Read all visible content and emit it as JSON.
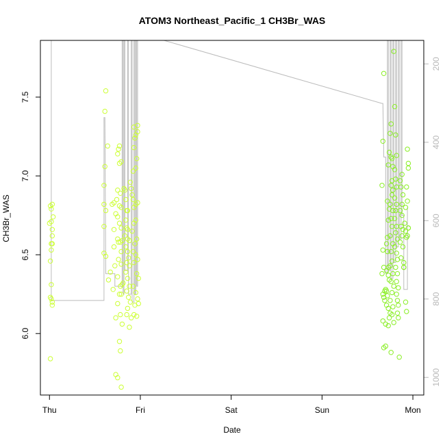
{
  "chart_data": {
    "type": "scatter",
    "title": "ATOM3 Northeast_Pacific_1 CH3Br_WAS",
    "xlabel": "Date",
    "ylabel": "CH3Br_WAS",
    "x_unit": "days",
    "x_ticks": [
      {
        "label": "Thu",
        "value": 0
      },
      {
        "label": "Fri",
        "value": 1
      },
      {
        "label": "Sat",
        "value": 2
      },
      {
        "label": "Sun",
        "value": 3
      },
      {
        "label": "Mon",
        "value": 4
      }
    ],
    "xlim": [
      -0.1,
      4.12
    ],
    "ylim": [
      5.61,
      7.86
    ],
    "y_ticks": [
      6.0,
      6.5,
      7.0,
      7.5
    ],
    "y_tick_labels": [
      "6.0",
      "6.5",
      "7.0",
      "7.5"
    ],
    "y2_ticks": [
      200,
      400,
      600,
      800,
      1000
    ],
    "y2_tick_labels": [
      "200",
      "400",
      "600",
      "800",
      "1000"
    ],
    "y2lim": [
      1045,
      140
    ],
    "y2_reversed": true,
    "point_color_early": "#ccff33",
    "point_color_late": "#88ee22",
    "line_color": "#bbbbbb",
    "series": [
      {
        "marker": "open-circle",
        "points": [
          [
            0.02,
            6.79
          ],
          [
            0.01,
            6.81
          ],
          [
            0.03,
            6.82
          ],
          [
            0.0,
            6.7
          ],
          [
            0.02,
            6.71
          ],
          [
            0.03,
            6.66
          ],
          [
            0.04,
            6.74
          ],
          [
            0.03,
            6.62
          ],
          [
            0.02,
            6.57
          ],
          [
            0.03,
            6.57
          ],
          [
            0.02,
            6.53
          ],
          [
            0.01,
            6.46
          ],
          [
            0.02,
            6.31
          ],
          [
            0.01,
            6.23
          ],
          [
            0.02,
            6.22
          ],
          [
            0.03,
            6.2
          ],
          [
            0.03,
            6.18
          ],
          [
            0.01,
            5.84
          ],
          [
            0.62,
            7.54
          ],
          [
            0.61,
            7.41
          ],
          [
            0.64,
            7.19
          ],
          [
            0.61,
            7.06
          ],
          [
            0.6,
            6.94
          ],
          [
            0.6,
            6.82
          ],
          [
            0.62,
            6.78
          ],
          [
            0.71,
            6.83
          ],
          [
            0.69,
            6.82
          ],
          [
            0.6,
            6.68
          ],
          [
            0.6,
            6.51
          ],
          [
            0.62,
            6.49
          ],
          [
            0.65,
            6.34
          ],
          [
            0.67,
            6.39
          ],
          [
            0.7,
            6.28
          ],
          [
            0.71,
            6.55
          ],
          [
            0.71,
            6.66
          ],
          [
            0.73,
            6.76
          ],
          [
            0.74,
            6.85
          ],
          [
            0.75,
            6.91
          ],
          [
            0.76,
            7.17
          ],
          [
            0.77,
            7.19
          ],
          [
            0.77,
            7.08
          ],
          [
            0.79,
            7.09
          ],
          [
            0.75,
            7.14
          ],
          [
            0.78,
            6.89
          ],
          [
            0.77,
            6.81
          ],
          [
            0.79,
            6.8
          ],
          [
            0.75,
            6.74
          ],
          [
            0.77,
            6.7
          ],
          [
            0.79,
            6.67
          ],
          [
            0.75,
            6.6
          ],
          [
            0.76,
            6.58
          ],
          [
            0.78,
            6.58
          ],
          [
            0.8,
            6.59
          ],
          [
            0.79,
            6.52
          ],
          [
            0.76,
            6.47
          ],
          [
            0.79,
            6.44
          ],
          [
            0.75,
            6.36
          ],
          [
            0.78,
            6.3
          ],
          [
            0.8,
            6.31
          ],
          [
            0.81,
            6.32
          ],
          [
            0.79,
            6.25
          ],
          [
            0.77,
            6.25
          ],
          [
            0.75,
            6.19
          ],
          [
            0.73,
            6.1
          ],
          [
            0.78,
            6.12
          ],
          [
            0.8,
            6.06
          ],
          [
            0.77,
            5.95
          ],
          [
            0.78,
            5.89
          ],
          [
            0.73,
            5.74
          ],
          [
            0.75,
            5.72
          ],
          [
            0.79,
            5.66
          ],
          [
            0.72,
            6.43
          ],
          [
            0.82,
            6.92
          ],
          [
            0.83,
            6.91
          ],
          [
            0.84,
            6.85
          ],
          [
            0.85,
            6.78
          ],
          [
            0.86,
            6.78
          ],
          [
            0.84,
            6.72
          ],
          [
            0.85,
            6.67
          ],
          [
            0.86,
            6.66
          ],
          [
            0.83,
            6.62
          ],
          [
            0.86,
            6.6
          ],
          [
            0.88,
            6.59
          ],
          [
            0.84,
            6.55
          ],
          [
            0.86,
            6.52
          ],
          [
            0.87,
            6.48
          ],
          [
            0.85,
            6.45
          ],
          [
            0.88,
            6.43
          ],
          [
            0.84,
            6.39
          ],
          [
            0.86,
            6.35
          ],
          [
            0.88,
            6.3
          ],
          [
            0.85,
            6.27
          ],
          [
            0.87,
            6.23
          ],
          [
            0.89,
            6.2
          ],
          [
            0.86,
            6.16
          ],
          [
            0.85,
            6.12
          ],
          [
            0.9,
            6.1
          ],
          [
            0.88,
            6.04
          ],
          [
            0.89,
            6.96
          ],
          [
            0.9,
            6.92
          ],
          [
            0.91,
            6.88
          ],
          [
            0.92,
            7.03
          ],
          [
            0.93,
            7.31
          ],
          [
            0.94,
            7.24
          ],
          [
            0.95,
            7.26
          ],
          [
            0.93,
            7.18
          ],
          [
            0.96,
            7.11
          ],
          [
            0.95,
            7.05
          ],
          [
            0.97,
            7.28
          ],
          [
            0.92,
            6.85
          ],
          [
            0.93,
            6.8
          ],
          [
            0.95,
            6.82
          ],
          [
            0.97,
            6.83
          ],
          [
            0.91,
            6.65
          ],
          [
            0.93,
            6.7
          ],
          [
            0.95,
            6.72
          ],
          [
            0.96,
            6.6
          ],
          [
            0.94,
            6.57
          ],
          [
            0.92,
            6.52
          ],
          [
            0.95,
            6.5
          ],
          [
            0.97,
            6.47
          ],
          [
            0.93,
            6.45
          ],
          [
            0.96,
            6.38
          ],
          [
            0.98,
            6.35
          ],
          [
            0.92,
            6.3
          ],
          [
            0.95,
            6.26
          ],
          [
            0.97,
            6.22
          ],
          [
            0.94,
            6.18
          ],
          [
            0.93,
            6.12
          ],
          [
            0.96,
            6.11
          ],
          [
            0.98,
            6.19
          ],
          [
            0.97,
            7.32
          ]
        ]
      },
      {
        "marker": "open-circle",
        "points": [
          [
            3.68,
            7.65
          ],
          [
            3.67,
            7.22
          ],
          [
            3.66,
            6.94
          ],
          [
            3.67,
            6.53
          ],
          [
            3.68,
            6.42
          ],
          [
            3.66,
            6.38
          ],
          [
            3.67,
            6.25
          ],
          [
            3.68,
            6.23
          ],
          [
            3.67,
            6.08
          ],
          [
            3.69,
            6.27
          ],
          [
            3.7,
            6.28
          ],
          [
            3.71,
            6.27
          ],
          [
            3.69,
            6.21
          ],
          [
            3.7,
            6.06
          ],
          [
            3.68,
            5.91
          ],
          [
            3.7,
            5.92
          ],
          [
            3.72,
            6.84
          ],
          [
            3.73,
            7.07
          ],
          [
            3.74,
            7.15
          ],
          [
            3.74,
            6.79
          ],
          [
            3.73,
            6.72
          ],
          [
            3.72,
            6.61
          ],
          [
            3.71,
            6.57
          ],
          [
            3.72,
            6.52
          ],
          [
            3.73,
            6.42
          ],
          [
            3.71,
            6.4
          ],
          [
            3.73,
            6.37
          ],
          [
            3.74,
            6.34
          ],
          [
            3.72,
            6.24
          ],
          [
            3.71,
            6.18
          ],
          [
            3.73,
            6.16
          ],
          [
            3.74,
            6.1
          ],
          [
            3.73,
            6.05
          ],
          [
            3.75,
            6.13
          ],
          [
            3.76,
            7.33
          ],
          [
            3.75,
            7.27
          ],
          [
            3.77,
            7.11
          ],
          [
            3.76,
            7.12
          ],
          [
            3.78,
            7.06
          ],
          [
            3.77,
            6.97
          ],
          [
            3.76,
            6.94
          ],
          [
            3.78,
            6.91
          ],
          [
            3.77,
            6.88
          ],
          [
            3.75,
            6.82
          ],
          [
            3.78,
            6.78
          ],
          [
            3.76,
            6.73
          ],
          [
            3.77,
            6.68
          ],
          [
            3.75,
            6.62
          ],
          [
            3.78,
            6.57
          ],
          [
            3.76,
            6.52
          ],
          [
            3.77,
            6.46
          ],
          [
            3.75,
            6.43
          ],
          [
            3.78,
            6.38
          ],
          [
            3.76,
            6.33
          ],
          [
            3.79,
            6.3
          ],
          [
            3.77,
            6.26
          ],
          [
            3.75,
            6.21
          ],
          [
            3.78,
            6.17
          ],
          [
            3.77,
            6.12
          ],
          [
            3.79,
            6.07
          ],
          [
            3.76,
            5.88
          ],
          [
            3.79,
            7.79
          ],
          [
            3.8,
            7.44
          ],
          [
            3.81,
            7.26
          ],
          [
            3.82,
            7.13
          ],
          [
            3.8,
            7.04
          ],
          [
            3.81,
            6.98
          ],
          [
            3.82,
            6.93
          ],
          [
            3.8,
            6.86
          ],
          [
            3.82,
            6.82
          ],
          [
            3.81,
            6.78
          ],
          [
            3.8,
            6.73
          ],
          [
            3.82,
            6.68
          ],
          [
            3.81,
            6.64
          ],
          [
            3.83,
            6.6
          ],
          [
            3.8,
            6.55
          ],
          [
            3.82,
            6.51
          ],
          [
            3.83,
            6.47
          ],
          [
            3.81,
            6.42
          ],
          [
            3.83,
            6.38
          ],
          [
            3.82,
            6.33
          ],
          [
            3.84,
            6.29
          ],
          [
            3.82,
            6.25
          ],
          [
            3.83,
            6.21
          ],
          [
            3.84,
            6.18
          ],
          [
            3.83,
            6.13
          ],
          [
            3.84,
            6.1
          ],
          [
            3.85,
            5.85
          ],
          [
            3.86,
            6.97
          ],
          [
            3.87,
            6.93
          ],
          [
            3.88,
            6.82
          ],
          [
            3.86,
            6.78
          ],
          [
            3.88,
            6.75
          ],
          [
            3.87,
            6.68
          ],
          [
            3.89,
            6.66
          ],
          [
            3.88,
            6.62
          ],
          [
            3.86,
            6.58
          ],
          [
            3.89,
            6.55
          ],
          [
            3.87,
            6.48
          ],
          [
            3.9,
            6.45
          ],
          [
            3.9,
            6.42
          ],
          [
            3.91,
            6.7
          ],
          [
            3.92,
            6.65
          ],
          [
            3.93,
            6.93
          ],
          [
            3.94,
            7.17
          ],
          [
            3.95,
            7.08
          ],
          [
            3.95,
            7.05
          ],
          [
            3.94,
            6.84
          ],
          [
            3.95,
            6.67
          ],
          [
            3.93,
            6.61
          ],
          [
            3.94,
            6.62
          ],
          [
            3.95,
            6.67
          ],
          [
            3.92,
            6.8
          ],
          [
            3.92,
            6.2
          ],
          [
            3.93,
            6.14
          ],
          [
            3.9,
            6.42
          ],
          [
            3.88,
            7.01
          ],
          [
            3.89,
            6.88
          ]
        ]
      }
    ],
    "line": [
      [
        0.0,
        7.86
      ],
      [
        0.0,
        7.86
      ],
      [
        0.02,
        7.86
      ],
      [
        0.02,
        6.21
      ],
      [
        0.6,
        6.21
      ],
      [
        0.6,
        7.37
      ],
      [
        0.61,
        7.37
      ],
      [
        0.62,
        6.38
      ],
      [
        0.72,
        6.38
      ],
      [
        0.72,
        6.3
      ],
      [
        0.8,
        6.3
      ],
      [
        0.8,
        7.86
      ],
      [
        0.81,
        7.86
      ],
      [
        0.81,
        6.25
      ],
      [
        0.82,
        6.25
      ],
      [
        0.82,
        7.86
      ],
      [
        0.83,
        7.86
      ],
      [
        0.83,
        6.4
      ],
      [
        0.86,
        6.4
      ],
      [
        0.86,
        7.86
      ],
      [
        0.87,
        7.86
      ],
      [
        0.87,
        6.25
      ],
      [
        0.9,
        6.25
      ],
      [
        0.9,
        7.86
      ],
      [
        0.91,
        7.86
      ],
      [
        0.91,
        6.2
      ],
      [
        0.93,
        6.2
      ],
      [
        0.93,
        7.86
      ],
      [
        0.94,
        7.86
      ],
      [
        0.94,
        6.25
      ],
      [
        0.95,
        6.25
      ],
      [
        0.95,
        7.86
      ],
      [
        0.96,
        7.86
      ],
      [
        0.96,
        6.3
      ],
      [
        0.97,
        6.3
      ],
      [
        0.97,
        7.86
      ],
      [
        1.26,
        7.86
      ],
      [
        3.66,
        7.46
      ],
      [
        3.67,
        7.46
      ],
      [
        3.68,
        7.12
      ],
      [
        3.7,
        7.12
      ],
      [
        3.7,
        6.38
      ],
      [
        3.72,
        6.38
      ],
      [
        3.72,
        7.86
      ],
      [
        3.73,
        7.86
      ],
      [
        3.73,
        6.4
      ],
      [
        3.75,
        6.4
      ],
      [
        3.75,
        7.86
      ],
      [
        3.76,
        7.86
      ],
      [
        3.76,
        6.35
      ],
      [
        3.78,
        6.35
      ],
      [
        3.78,
        7.86
      ],
      [
        3.79,
        7.86
      ],
      [
        3.79,
        6.45
      ],
      [
        3.81,
        6.45
      ],
      [
        3.81,
        7.86
      ],
      [
        3.82,
        7.86
      ],
      [
        3.82,
        6.55
      ],
      [
        3.84,
        6.55
      ],
      [
        3.84,
        7.86
      ],
      [
        3.85,
        7.86
      ],
      [
        3.85,
        6.6
      ],
      [
        3.87,
        6.6
      ],
      [
        3.87,
        7.86
      ],
      [
        3.88,
        7.86
      ],
      [
        3.88,
        6.75
      ],
      [
        3.9,
        6.75
      ],
      [
        3.9,
        6.28
      ],
      [
        3.94,
        6.28
      ],
      [
        3.94,
        6.8
      ]
    ]
  }
}
